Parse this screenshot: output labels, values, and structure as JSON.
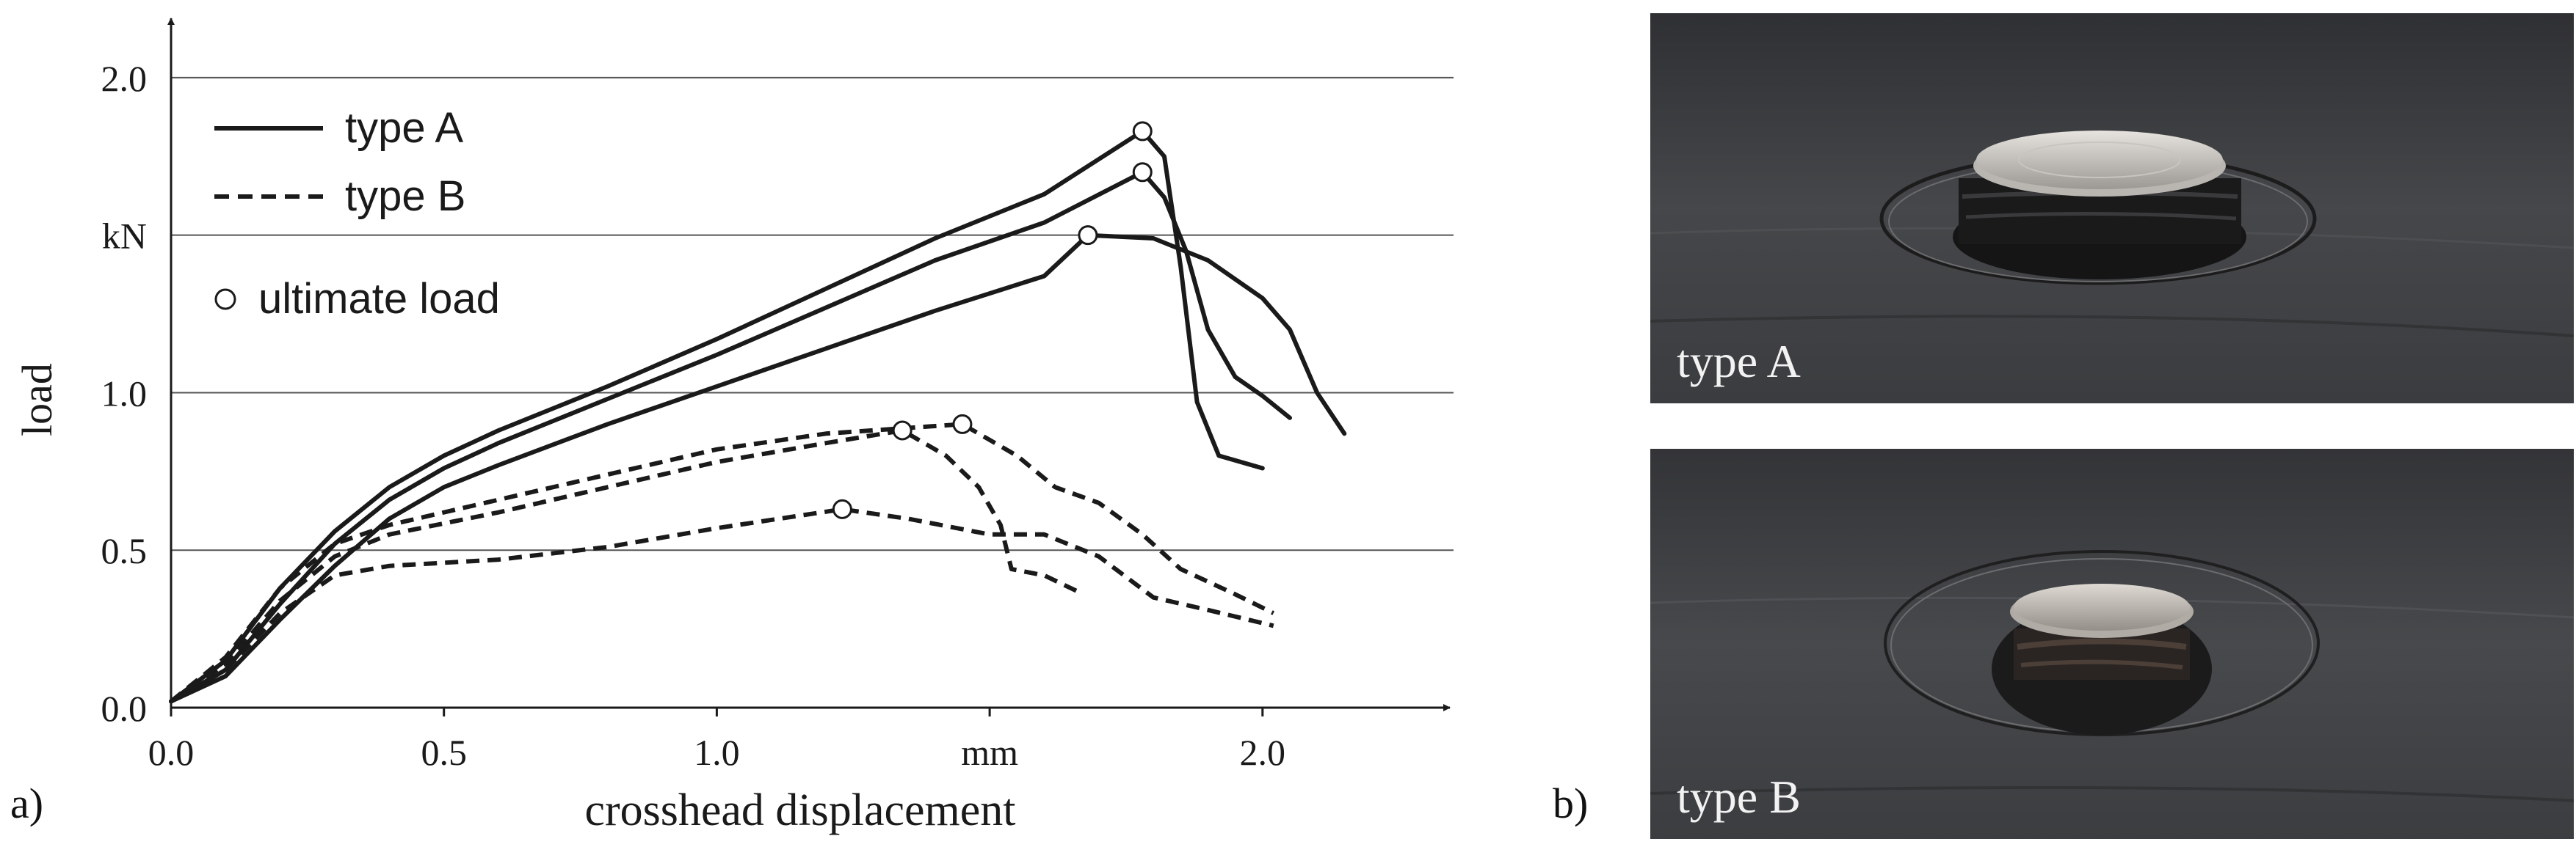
{
  "panel_labels": {
    "a": "a)",
    "b": "b)"
  },
  "photos": [
    {
      "caption": "type A"
    },
    {
      "caption": "type B"
    }
  ],
  "chart_data": {
    "type": "line",
    "xlabel": "crosshead displacement",
    "ylabel": "load",
    "x_unit": "mm",
    "y_unit": "kN",
    "xlim": [
      0,
      2.35
    ],
    "ylim": [
      0,
      2.2
    ],
    "x_ticks": [
      {
        "value": 0.0,
        "label": "0.0"
      },
      {
        "value": 0.5,
        "label": "0.5"
      },
      {
        "value": 1.0,
        "label": "1.0"
      },
      {
        "value": 1.5,
        "label": "mm"
      },
      {
        "value": 2.0,
        "label": "2.0"
      }
    ],
    "y_ticks": [
      {
        "value": 0.0,
        "label": "0.0"
      },
      {
        "value": 0.5,
        "label": "0.5"
      },
      {
        "value": 1.0,
        "label": "1.0"
      },
      {
        "value": 1.5,
        "label": "kN"
      },
      {
        "value": 2.0,
        "label": "2.0"
      }
    ],
    "grid": "horizontal",
    "legend_position": "top-left",
    "legend": [
      {
        "label": "type A",
        "style": "solid"
      },
      {
        "label": "type B",
        "style": "dashed"
      },
      {
        "label": "ultimate load",
        "style": "circle"
      }
    ],
    "series": [
      {
        "group": "type A",
        "style": "solid",
        "points": [
          [
            0,
            0.02
          ],
          [
            0.1,
            0.1
          ],
          [
            0.2,
            0.28
          ],
          [
            0.3,
            0.45
          ],
          [
            0.4,
            0.6
          ],
          [
            0.5,
            0.7
          ],
          [
            0.6,
            0.77
          ],
          [
            0.8,
            0.9
          ],
          [
            1.0,
            1.02
          ],
          [
            1.2,
            1.14
          ],
          [
            1.4,
            1.26
          ],
          [
            1.6,
            1.37
          ],
          [
            1.68,
            1.5
          ],
          [
            1.8,
            1.49
          ],
          [
            1.9,
            1.42
          ],
          [
            2.0,
            1.3
          ],
          [
            2.05,
            1.2
          ],
          [
            2.1,
            1.0
          ],
          [
            2.15,
            0.87
          ]
        ],
        "ultimate": [
          1.68,
          1.5
        ]
      },
      {
        "group": "type A",
        "style": "solid",
        "points": [
          [
            0,
            0.02
          ],
          [
            0.1,
            0.12
          ],
          [
            0.2,
            0.33
          ],
          [
            0.3,
            0.52
          ],
          [
            0.4,
            0.66
          ],
          [
            0.5,
            0.76
          ],
          [
            0.6,
            0.84
          ],
          [
            0.8,
            0.98
          ],
          [
            1.0,
            1.12
          ],
          [
            1.2,
            1.27
          ],
          [
            1.4,
            1.42
          ],
          [
            1.6,
            1.54
          ],
          [
            1.78,
            1.7
          ],
          [
            1.82,
            1.62
          ],
          [
            1.86,
            1.45
          ],
          [
            1.9,
            1.2
          ],
          [
            1.95,
            1.05
          ],
          [
            2.0,
            0.99
          ],
          [
            2.05,
            0.92
          ]
        ],
        "ultimate": [
          1.78,
          1.7
        ]
      },
      {
        "group": "type A",
        "style": "solid",
        "points": [
          [
            0,
            0.02
          ],
          [
            0.1,
            0.15
          ],
          [
            0.2,
            0.38
          ],
          [
            0.3,
            0.56
          ],
          [
            0.4,
            0.7
          ],
          [
            0.5,
            0.8
          ],
          [
            0.6,
            0.88
          ],
          [
            0.8,
            1.02
          ],
          [
            1.0,
            1.17
          ],
          [
            1.2,
            1.33
          ],
          [
            1.4,
            1.49
          ],
          [
            1.6,
            1.63
          ],
          [
            1.78,
            1.83
          ],
          [
            1.82,
            1.75
          ],
          [
            1.85,
            1.4
          ],
          [
            1.88,
            0.97
          ],
          [
            1.92,
            0.8
          ],
          [
            2.0,
            0.76
          ]
        ],
        "ultimate": [
          1.78,
          1.83
        ]
      },
      {
        "group": "type B",
        "style": "dashed",
        "points": [
          [
            0,
            0.02
          ],
          [
            0.1,
            0.12
          ],
          [
            0.2,
            0.3
          ],
          [
            0.3,
            0.42
          ],
          [
            0.4,
            0.45
          ],
          [
            0.6,
            0.47
          ],
          [
            0.8,
            0.51
          ],
          [
            1.0,
            0.57
          ],
          [
            1.23,
            0.63
          ],
          [
            1.35,
            0.6
          ],
          [
            1.5,
            0.55
          ],
          [
            1.6,
            0.55
          ],
          [
            1.7,
            0.48
          ],
          [
            1.8,
            0.35
          ],
          [
            1.9,
            0.31
          ],
          [
            2.02,
            0.26
          ]
        ],
        "ultimate": [
          1.23,
          0.63
        ]
      },
      {
        "group": "type B",
        "style": "dashed",
        "points": [
          [
            0,
            0.02
          ],
          [
            0.1,
            0.14
          ],
          [
            0.2,
            0.34
          ],
          [
            0.3,
            0.48
          ],
          [
            0.4,
            0.55
          ],
          [
            0.6,
            0.62
          ],
          [
            0.8,
            0.7
          ],
          [
            1.0,
            0.78
          ],
          [
            1.2,
            0.84
          ],
          [
            1.34,
            0.88
          ],
          [
            1.42,
            0.8
          ],
          [
            1.48,
            0.7
          ],
          [
            1.52,
            0.58
          ],
          [
            1.54,
            0.44
          ],
          [
            1.6,
            0.42
          ],
          [
            1.66,
            0.37
          ]
        ],
        "ultimate": [
          1.34,
          0.88
        ]
      },
      {
        "group": "type B",
        "style": "dashed",
        "points": [
          [
            0,
            0.02
          ],
          [
            0.1,
            0.16
          ],
          [
            0.2,
            0.38
          ],
          [
            0.3,
            0.52
          ],
          [
            0.4,
            0.58
          ],
          [
            0.6,
            0.66
          ],
          [
            0.8,
            0.74
          ],
          [
            1.0,
            0.82
          ],
          [
            1.2,
            0.87
          ],
          [
            1.45,
            0.9
          ],
          [
            1.55,
            0.8
          ],
          [
            1.62,
            0.7
          ],
          [
            1.7,
            0.65
          ],
          [
            1.78,
            0.55
          ],
          [
            1.85,
            0.44
          ],
          [
            1.95,
            0.36
          ],
          [
            2.02,
            0.3
          ]
        ],
        "ultimate": [
          1.45,
          0.9
        ]
      }
    ]
  }
}
